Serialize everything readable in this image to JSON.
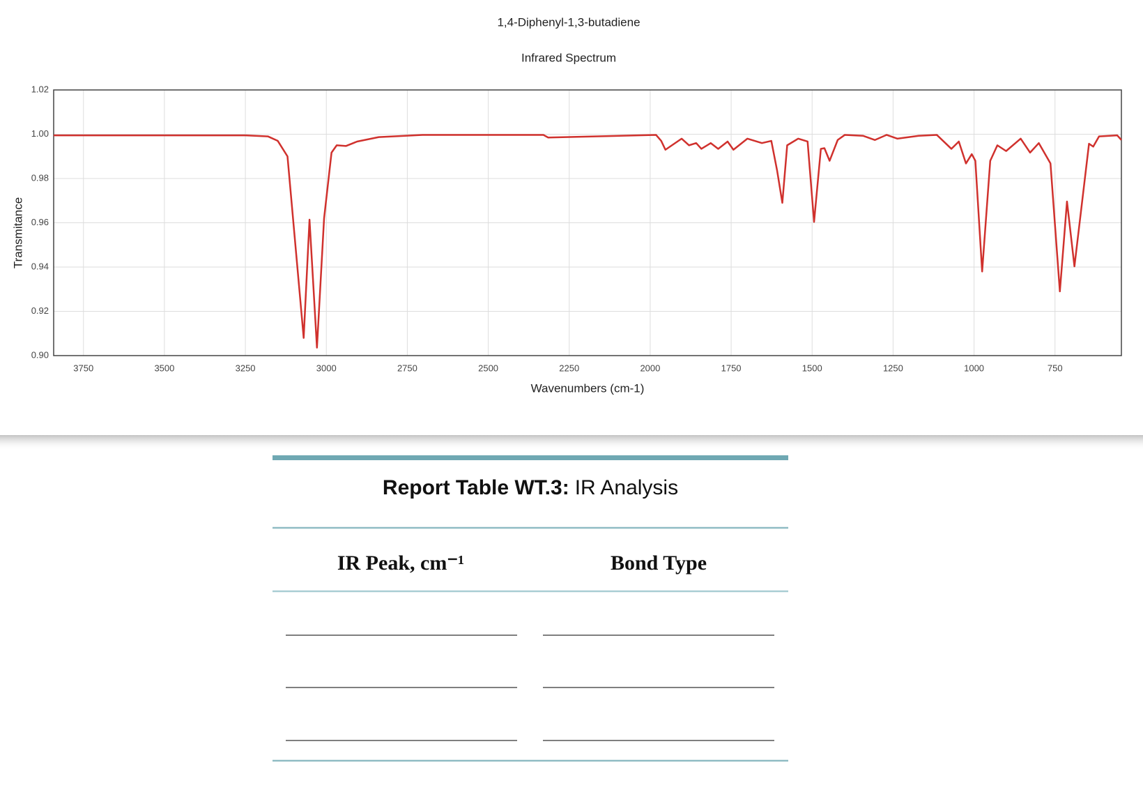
{
  "chart_data": {
    "type": "line",
    "title": "1,4-Diphenyl-1,3-butadiene",
    "subtitle": "Infrared Spectrum",
    "x_label": "Wavenumbers (cm-1)",
    "y_label": "Transmitance",
    "color": "#d0312d",
    "xlim": [
      3842,
      545
    ],
    "ylim": [
      0.9,
      1.02
    ],
    "xticks": [
      3750,
      3500,
      3250,
      3000,
      2750,
      2500,
      2250,
      2000,
      1750,
      1500,
      1250,
      1000,
      750
    ],
    "yticks": [
      {
        "value": 0.9,
        "label": "0.90"
      },
      0.92,
      0.94,
      0.96,
      0.98,
      {
        "value": 1,
        "label": "1.00"
      },
      1.02
    ],
    "grid": true,
    "x": [
      3842,
      3250,
      3180,
      3150,
      3120,
      3070,
      3052,
      3029,
      3007,
      2984,
      2968,
      2939,
      2905,
      2838,
      2703,
      2330,
      2315,
      1982,
      1966,
      1953,
      1903,
      1880,
      1858,
      1842,
      1813,
      1790,
      1761,
      1743,
      1700,
      1655,
      1626,
      1608,
      1592,
      1577,
      1543,
      1514,
      1494,
      1473,
      1462,
      1446,
      1421,
      1399,
      1343,
      1306,
      1270,
      1237,
      1171,
      1115,
      1070,
      1047,
      1025,
      1007,
      996,
      975,
      950,
      928,
      901,
      856,
      827,
      800,
      764,
      735,
      713,
      690,
      645,
      632,
      614,
      558,
      545
    ],
    "values": [
      0.9995,
      0.9995,
      0.999,
      0.997,
      0.99,
      0.908,
      0.9614,
      0.9036,
      0.962,
      0.9917,
      0.995,
      0.9947,
      0.9967,
      0.9987,
      0.9997,
      0.9997,
      0.9985,
      0.9997,
      0.997,
      0.993,
      0.998,
      0.995,
      0.996,
      0.9934,
      0.996,
      0.9934,
      0.9967,
      0.993,
      0.998,
      0.996,
      0.997,
      0.9835,
      0.969,
      0.995,
      0.998,
      0.9967,
      0.9604,
      0.9934,
      0.9937,
      0.988,
      0.9974,
      0.9997,
      0.9993,
      0.9974,
      0.9997,
      0.998,
      0.9993,
      0.9997,
      0.9934,
      0.9967,
      0.9868,
      0.991,
      0.988,
      0.938,
      0.988,
      0.995,
      0.9924,
      0.998,
      0.9917,
      0.996,
      0.9868,
      0.929,
      0.9696,
      0.9403,
      0.9957,
      0.9944,
      0.999,
      0.9995,
      0.9974
    ]
  },
  "table": {
    "title_bold": "Report Table WT.3:",
    "title": "IR Analysis",
    "columns": [
      "IR Peak, cm⁻¹",
      "Bond Type"
    ]
  }
}
